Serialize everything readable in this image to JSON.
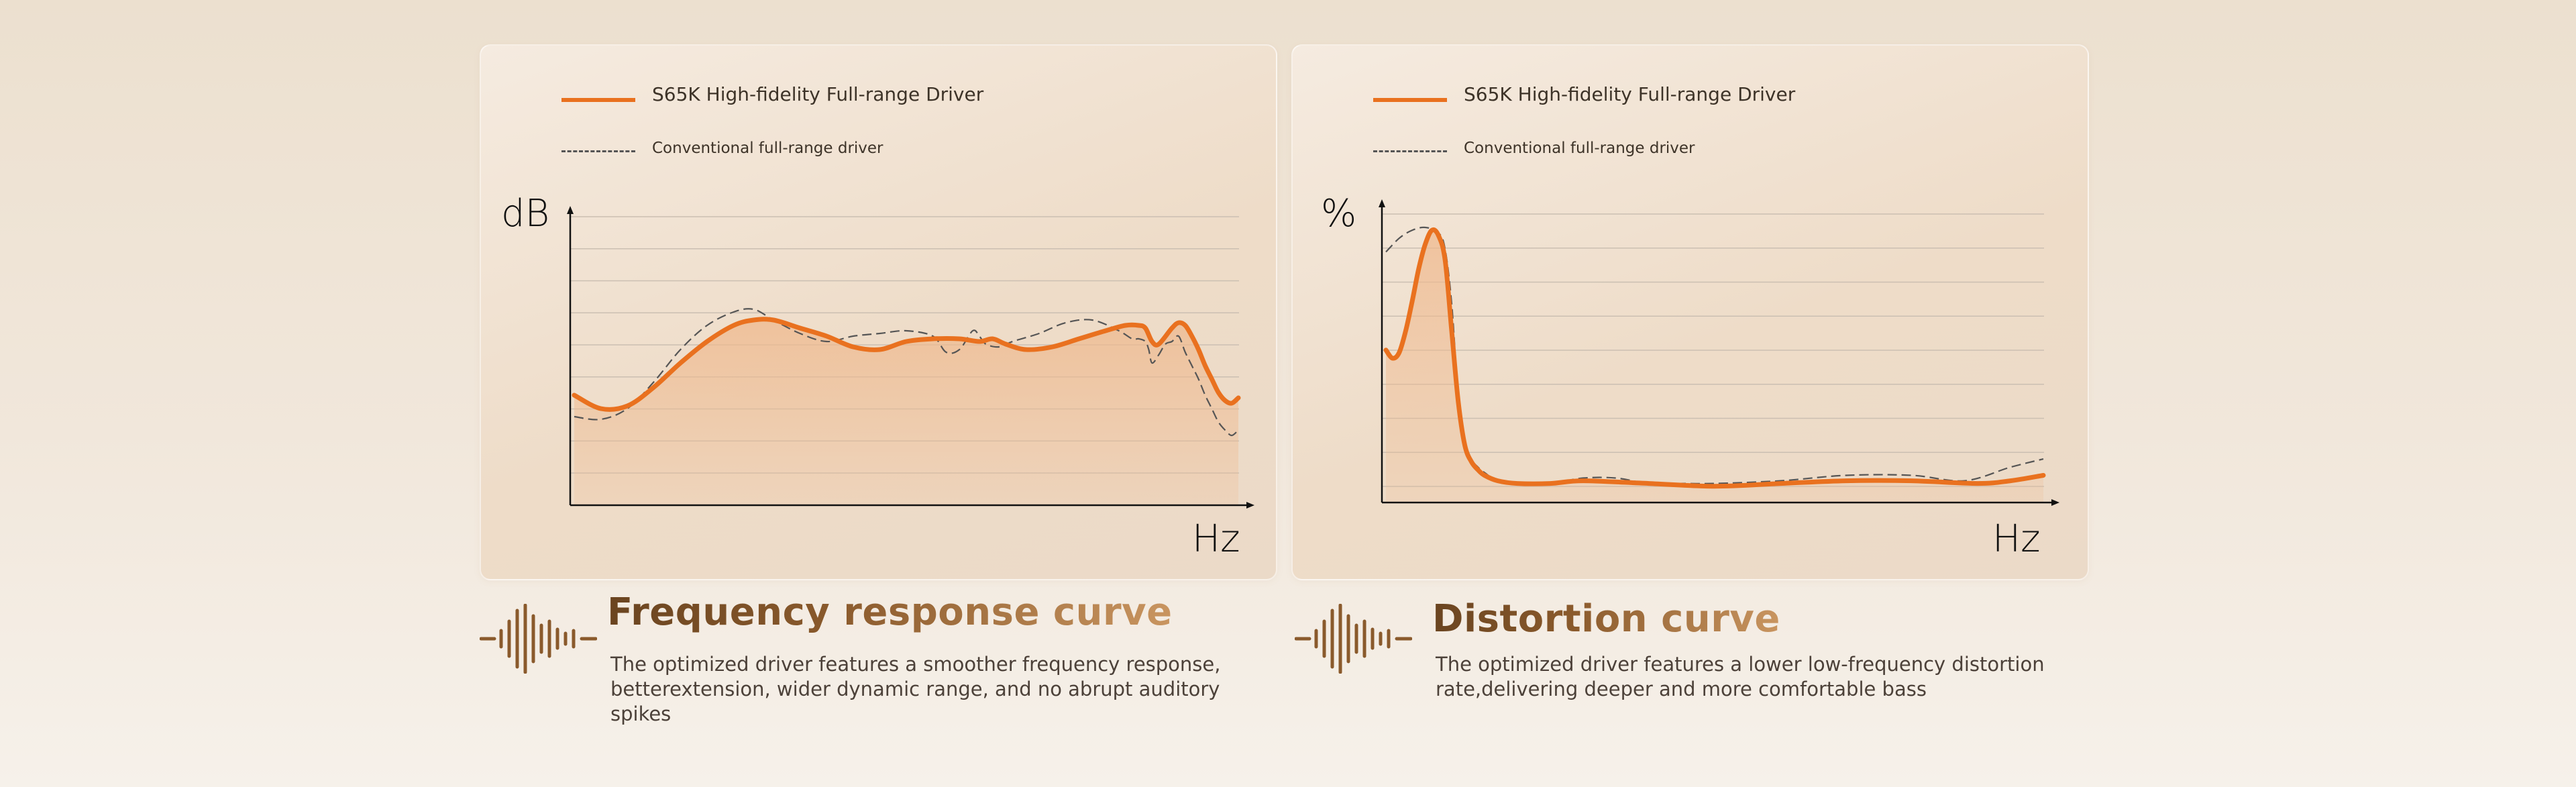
{
  "colors": {
    "accent": "#e9711f",
    "fill": "#efb88c",
    "dashed": "#555555",
    "grid": "#cbbfb2",
    "title_start": "#6a4420",
    "title_end": "#c99560"
  },
  "icons": {
    "caption": "sound-wave-icon"
  },
  "charts": [
    {
      "legend_main": "S65K High-fidelity Full-range Driver",
      "legend_sub": "Conventional full-range driver",
      "y_unit": "dB",
      "x_unit": "Hz",
      "caption_title": "Frequency response curve",
      "caption_text": "The optimized driver features a smoother frequency response, betterextension, wider dynamic range, and no abrupt auditory spikes"
    },
    {
      "legend_main": "S65K High-fidelity Full-range Driver",
      "legend_sub": "Conventional full-range driver",
      "y_unit": "%",
      "x_unit": "Hz",
      "caption_title": "Distortion curve",
      "caption_text": "The optimized driver features a lower low-frequency distortion rate,delivering deeper and more comfortable bass"
    }
  ],
  "chart_data": [
    {
      "type": "line",
      "xlabel": "Hz",
      "ylabel": "dB",
      "ylim": [
        0,
        10
      ],
      "xlim": [
        0,
        100
      ],
      "grid": true,
      "legend": "top-left",
      "area_fill": true,
      "series": [
        {
          "name": "S65K High-fidelity Full-range Driver",
          "style": "solid",
          "x": [
            0,
            4,
            8,
            12,
            16,
            20,
            24,
            27,
            30,
            34,
            38,
            42,
            46,
            50,
            54,
            58,
            61,
            63,
            65,
            68,
            72,
            76,
            80,
            83,
            85,
            86,
            87,
            88,
            90,
            91,
            92,
            93,
            94,
            95,
            96,
            97,
            98,
            99,
            100
          ],
          "y": [
            4.0,
            3.5,
            3.6,
            4.3,
            5.2,
            6.0,
            6.6,
            6.8,
            6.8,
            6.5,
            6.2,
            5.8,
            5.7,
            6.0,
            6.1,
            6.1,
            6.0,
            6.1,
            5.9,
            5.7,
            5.8,
            6.1,
            6.4,
            6.6,
            6.6,
            6.5,
            6.0,
            5.9,
            6.5,
            6.7,
            6.6,
            6.2,
            5.7,
            5.1,
            4.6,
            4.1,
            3.8,
            3.7,
            3.9
          ]
        },
        {
          "name": "Conventional full-range driver",
          "style": "dashed",
          "x": [
            0,
            4,
            8,
            12,
            16,
            20,
            24,
            27,
            30,
            34,
            38,
            42,
            46,
            50,
            54,
            56,
            58,
            60,
            61,
            62,
            64,
            66,
            70,
            74,
            78,
            82,
            84,
            85,
            86,
            86.5,
            87,
            88,
            89,
            90,
            91,
            92,
            93,
            94,
            95,
            96,
            97,
            98,
            99,
            100
          ],
          "y": [
            3.2,
            3.1,
            3.5,
            4.5,
            5.7,
            6.6,
            7.1,
            7.2,
            6.8,
            6.3,
            6.0,
            6.2,
            6.3,
            6.4,
            6.2,
            5.6,
            5.7,
            6.4,
            6.2,
            5.9,
            5.8,
            6.0,
            6.3,
            6.7,
            6.8,
            6.4,
            6.1,
            6.1,
            6.0,
            5.7,
            5.2,
            5.5,
            5.9,
            6.0,
            6.2,
            5.6,
            5.1,
            4.6,
            4.0,
            3.5,
            3.0,
            2.7,
            2.5,
            2.7
          ]
        }
      ]
    },
    {
      "type": "line",
      "xlabel": "Hz",
      "ylabel": "%",
      "ylim": [
        0,
        10
      ],
      "xlim": [
        0,
        100
      ],
      "grid": true,
      "legend": "top-left",
      "area_fill": true,
      "series": [
        {
          "name": "S65K High-fidelity Full-range Driver",
          "style": "solid",
          "x": [
            0,
            1,
            2,
            3,
            4,
            5,
            6,
            7,
            8,
            9,
            10,
            11,
            12,
            13,
            14,
            15,
            17,
            20,
            25,
            30,
            40,
            50,
            60,
            70,
            80,
            90,
            95,
            100
          ],
          "y": [
            5.5,
            5.2,
            5.4,
            6.2,
            7.3,
            8.5,
            9.4,
            9.9,
            9.7,
            8.8,
            6.2,
            3.6,
            2.0,
            1.4,
            1.1,
            0.9,
            0.7,
            0.6,
            0.6,
            0.7,
            0.6,
            0.5,
            0.6,
            0.7,
            0.7,
            0.6,
            0.7,
            0.9
          ]
        },
        {
          "name": "Conventional full-range driver",
          "style": "dashed",
          "x": [
            0,
            2,
            4,
            6,
            8,
            9,
            10,
            11,
            12,
            13,
            14,
            15,
            17,
            20,
            25,
            30,
            35,
            40,
            45,
            50,
            60,
            70,
            80,
            88,
            95,
            100
          ],
          "y": [
            9.1,
            9.6,
            9.9,
            10.0,
            9.8,
            9.2,
            7.2,
            3.8,
            2.2,
            1.5,
            1.2,
            1.0,
            0.7,
            0.6,
            0.6,
            0.8,
            0.8,
            0.6,
            0.6,
            0.6,
            0.7,
            0.9,
            0.9,
            0.7,
            1.2,
            1.5
          ]
        }
      ]
    }
  ]
}
